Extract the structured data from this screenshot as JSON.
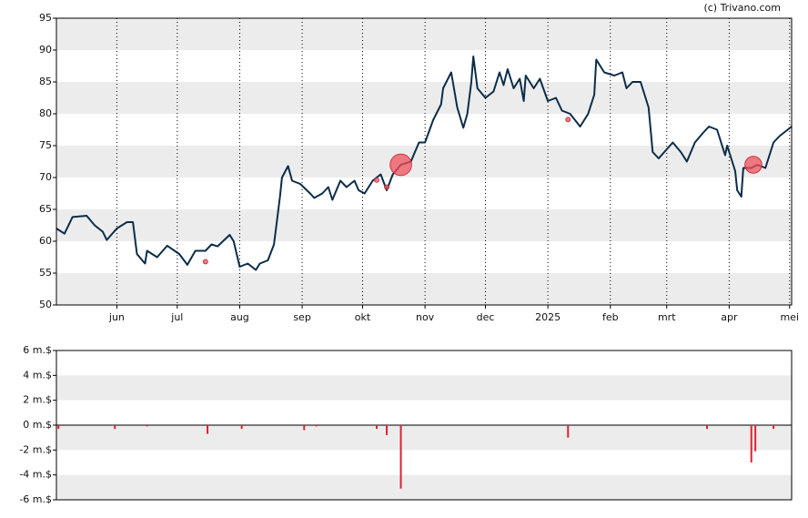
{
  "chart_data": [
    {
      "type": "line",
      "attribution": "(c) Trivano.com",
      "x": [
        0,
        4,
        8,
        15,
        19,
        23,
        25,
        30,
        35,
        38,
        40,
        44,
        45,
        50,
        55,
        61,
        65,
        69,
        74,
        77,
        80,
        86,
        88,
        91,
        95,
        99,
        101,
        105,
        108,
        109,
        111,
        112,
        115,
        117,
        121,
        126,
        128,
        132,
        135,
        137,
        141,
        144,
        148,
        150,
        153,
        157,
        161,
        164,
        167,
        171,
        176,
        178,
        180,
        183,
        187,
        191,
        192,
        196,
        199,
        202,
        204,
        206,
        207,
        209,
        213,
        217,
        220,
        222,
        224,
        227,
        230,
        232,
        233,
        237,
        240,
        244,
        248,
        251,
        255,
        260,
        264,
        267,
        268,
        272,
        277,
        281,
        283,
        286,
        290,
        294,
        296,
        299,
        306,
        310,
        313,
        317,
        321,
        324,
        328,
        332,
        333,
        337,
        338,
        340,
        341,
        345,
        348,
        352,
        356,
        359,
        363,
        365
      ],
      "series": [
        {
          "color": "#0b2d4a",
          "values": [
            62.0,
            61.2,
            63.8,
            64.0,
            62.5,
            61.5,
            60.2,
            62.0,
            63.0,
            63.0,
            58.0,
            56.5,
            58.5,
            57.5,
            59.3,
            58.0,
            56.3,
            58.5,
            58.5,
            59.5,
            59.2,
            61.0,
            60.0,
            56.0,
            56.5,
            55.5,
            56.5,
            57.0,
            59.5,
            62.0,
            67.0,
            70.0,
            71.8,
            69.5,
            69.0,
            67.5,
            66.8,
            67.5,
            68.5,
            66.5,
            69.5,
            68.5,
            69.5,
            68.0,
            67.5,
            69.5,
            70.5,
            68.0,
            70.5,
            72.0,
            72.5,
            74.0,
            75.5,
            75.5,
            79.0,
            81.5,
            84.0,
            86.5,
            81.0,
            77.8,
            80.0,
            85.0,
            89.0,
            84.0,
            82.5,
            83.5,
            86.5,
            84.5,
            87.0,
            84.0,
            85.5,
            82.0,
            86.0,
            84.0,
            85.5,
            82.0,
            82.5,
            80.5,
            80.0,
            78.0,
            80.0,
            83.0,
            88.5,
            86.5,
            86.0,
            86.5,
            84.0,
            85.0,
            85.0,
            81.0,
            74.0,
            73.0,
            75.5,
            74.0,
            72.5,
            75.5,
            77.0,
            78.0,
            77.5,
            73.5,
            75.0,
            71.0,
            68.0,
            67.0,
            71.5,
            71.5,
            72.0,
            71.5,
            75.5,
            76.5,
            77.5,
            78.0
          ]
        }
      ],
      "markers": {
        "color": "#f0505a",
        "x": [
          74,
          159,
          164,
          171,
          254,
          346
        ],
        "values": [
          56.8,
          69.6,
          68.5,
          72.0,
          79.1,
          72.0
        ],
        "sizes": [
          0.1,
          0.1,
          0.1,
          5.1,
          0.1,
          3.0
        ]
      },
      "xlim": [
        0,
        365
      ],
      "xticks": [
        {
          "value": 30,
          "label": "jun"
        },
        {
          "value": 60,
          "label": "jul"
        },
        {
          "value": 91,
          "label": "aug"
        },
        {
          "value": 122,
          "label": "sep"
        },
        {
          "value": 152,
          "label": "okt"
        },
        {
          "value": 183,
          "label": "nov"
        },
        {
          "value": 213,
          "label": "dec"
        },
        {
          "value": 244,
          "label": "2025"
        },
        {
          "value": 275,
          "label": "feb"
        },
        {
          "value": 303,
          "label": "mrt"
        },
        {
          "value": 334,
          "label": "apr"
        },
        {
          "value": 364,
          "label": "mei"
        }
      ],
      "ylim": [
        50,
        95
      ],
      "yticks": [
        50,
        55,
        60,
        65,
        70,
        75,
        80,
        85,
        90,
        95
      ],
      "grid": true,
      "bands": true
    },
    {
      "type": "bar",
      "color": "#dd2233",
      "x": [
        1,
        29,
        45,
        75,
        92,
        123,
        129,
        159,
        164,
        171,
        254,
        323,
        345,
        347,
        356
      ],
      "values": [
        -0.3,
        -0.3,
        -0.1,
        -0.7,
        -0.3,
        -0.4,
        -0.1,
        -0.3,
        -0.8,
        -5.1,
        -1.0,
        -0.3,
        -3.0,
        -2.1,
        -0.3
      ],
      "xlim": [
        0,
        365
      ],
      "ylim": [
        -6,
        6
      ],
      "yticks": [
        {
          "value": -6,
          "label": "-6 m.$"
        },
        {
          "value": -4,
          "label": "-4 m.$"
        },
        {
          "value": -2,
          "label": "-2 m.$"
        },
        {
          "value": 0,
          "label": "0 m.$"
        },
        {
          "value": 2,
          "label": "2 m.$"
        },
        {
          "value": 4,
          "label": "4 m.$"
        },
        {
          "value": 6,
          "label": "6 m.$"
        }
      ],
      "grid": false,
      "bands": true
    }
  ]
}
